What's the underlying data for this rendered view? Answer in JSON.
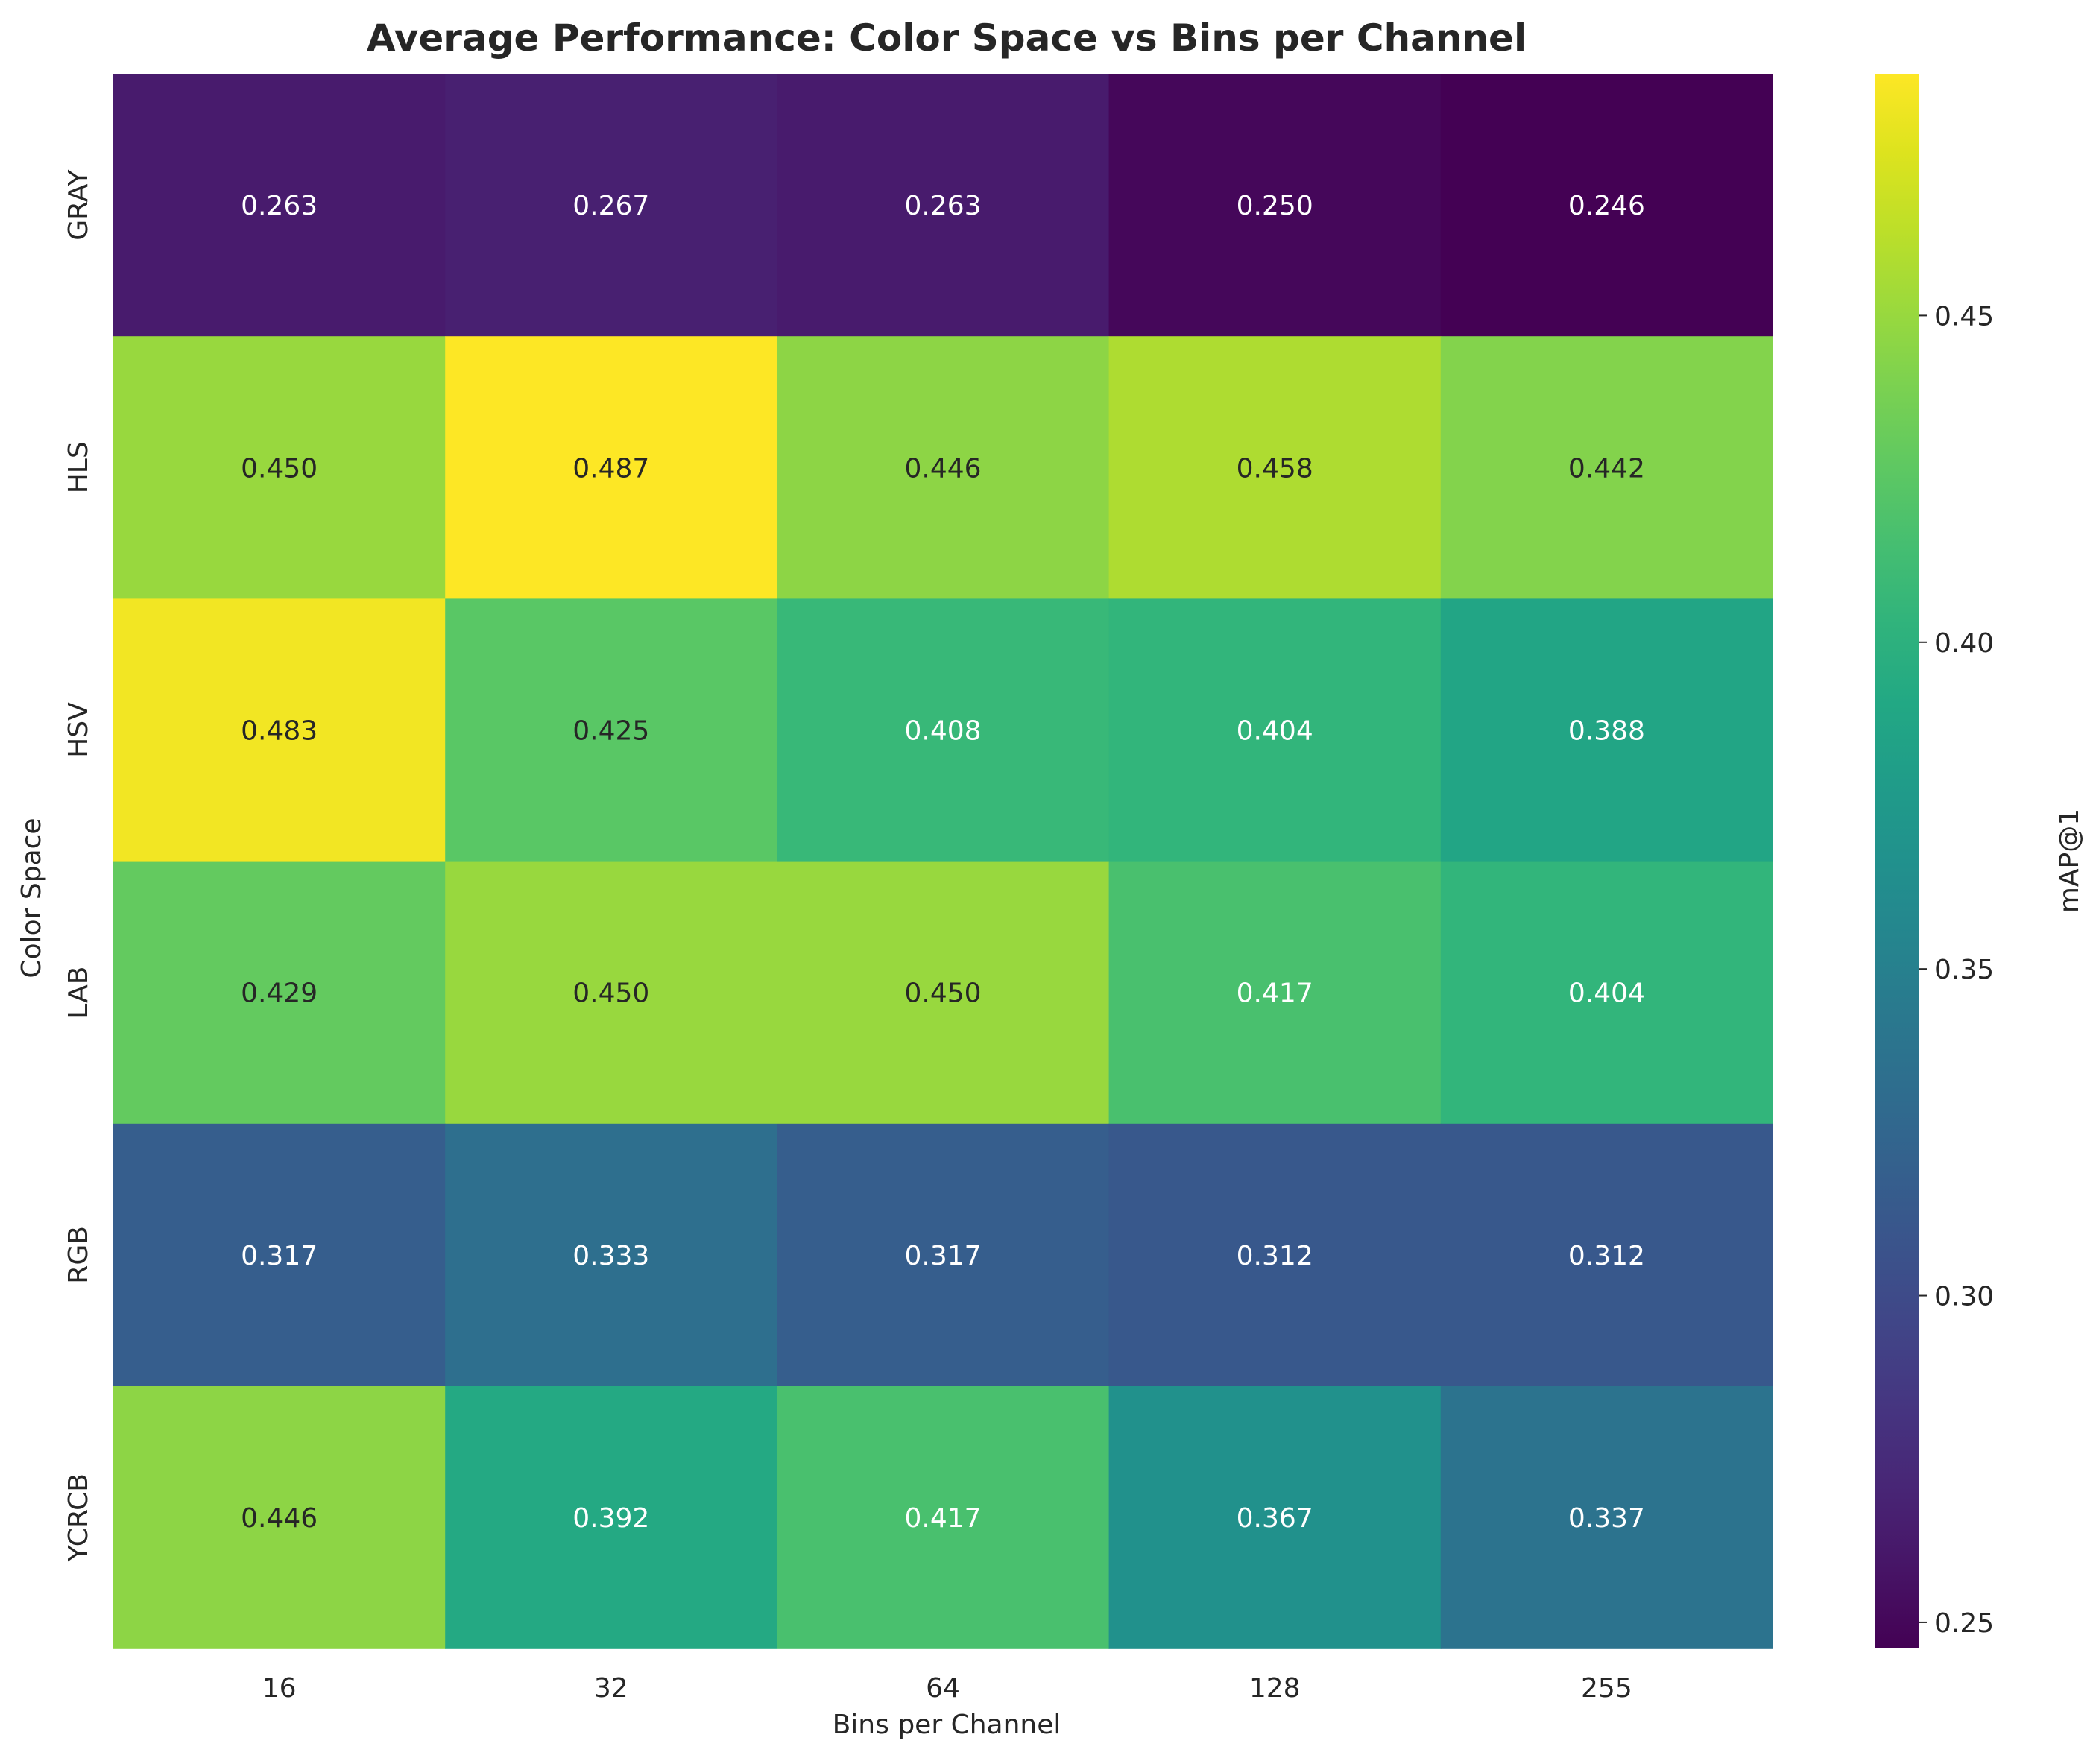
{
  "chart_data": {
    "type": "heatmap",
    "title": "Average Performance: Color Space vs Bins per Channel",
    "xlabel": "Bins per Channel",
    "ylabel": "Color Space",
    "x_categories": [
      "16",
      "32",
      "64",
      "128",
      "255"
    ],
    "y_categories": [
      "GRAY",
      "HLS",
      "HSV",
      "LAB",
      "RGB",
      "YCRCB"
    ],
    "values": [
      [
        0.263,
        0.267,
        0.263,
        0.25,
        0.246
      ],
      [
        0.45,
        0.487,
        0.446,
        0.458,
        0.442
      ],
      [
        0.483,
        0.425,
        0.408,
        0.404,
        0.388
      ],
      [
        0.429,
        0.45,
        0.45,
        0.417,
        0.404
      ],
      [
        0.317,
        0.333,
        0.317,
        0.312,
        0.312
      ],
      [
        0.446,
        0.392,
        0.417,
        0.367,
        0.337
      ]
    ],
    "value_format": "3 decimals",
    "colormap": "viridis",
    "vmin": 0.246,
    "vmax": 0.487,
    "colorbar": {
      "label": "mAP@1",
      "ticks": [
        0.25,
        0.3,
        0.35,
        0.4,
        0.45
      ],
      "tick_labels": [
        "0.25",
        "0.30",
        "0.35",
        "0.40",
        "0.45"
      ]
    },
    "annotation_dark_text_color": "#262626",
    "annotation_light_text_color": "#ffffff"
  }
}
